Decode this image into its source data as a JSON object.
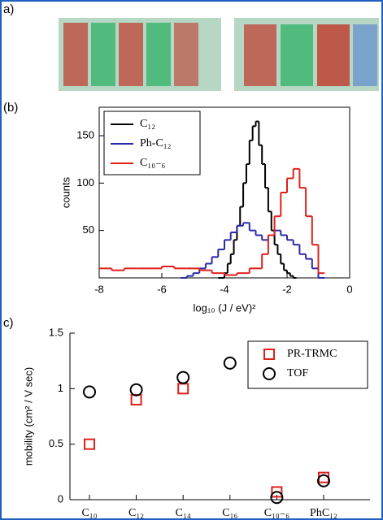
{
  "panels": {
    "a": "a)",
    "b": "(b)",
    "c": "c)"
  },
  "chart_data": [
    {
      "type": "step",
      "xlabel": "log₁₀ (J / eV)²",
      "ylabel": "counts",
      "xlim": [
        -8,
        0
      ],
      "xticks": [
        -8,
        -6,
        -4,
        -2,
        0
      ],
      "ylim": [
        0,
        180
      ],
      "yticks": [
        50,
        100,
        150
      ],
      "legend": "upper left",
      "series": [
        {
          "name": "C₁₂",
          "color": "#000000",
          "x": [
            -4.2,
            -4.0,
            -3.9,
            -3.8,
            -3.7,
            -3.6,
            -3.5,
            -3.4,
            -3.3,
            -3.2,
            -3.1,
            -3.0,
            -2.9,
            -2.8,
            -2.7,
            -2.6,
            -2.5,
            -2.4,
            -2.3,
            -2.2,
            -2.1,
            -2.0,
            -1.9,
            -1.8
          ],
          "values": [
            0,
            5,
            15,
            25,
            40,
            55,
            75,
            100,
            120,
            145,
            160,
            165,
            140,
            120,
            95,
            70,
            50,
            35,
            25,
            15,
            8,
            5,
            2,
            0
          ]
        },
        {
          "name": "Ph-C₁₂",
          "color": "#2a2aa8",
          "x": [
            -5.4,
            -5.2,
            -5.0,
            -4.8,
            -4.6,
            -4.4,
            -4.2,
            -4.0,
            -3.8,
            -3.6,
            -3.4,
            -3.2,
            -3.0,
            -2.8,
            -2.6,
            -2.4,
            -2.2,
            -2.0,
            -1.8,
            -1.6,
            -1.4,
            -1.2,
            -1.0
          ],
          "values": [
            0,
            2,
            5,
            10,
            15,
            22,
            30,
            40,
            48,
            55,
            58,
            50,
            45,
            40,
            45,
            50,
            45,
            40,
            35,
            25,
            20,
            10,
            0
          ]
        },
        {
          "name": "C₁₀₋₆",
          "color": "#e0201b",
          "x": [
            -8.0,
            -7.6,
            -7.2,
            -6.8,
            -6.4,
            -6.0,
            -5.6,
            -5.2,
            -4.8,
            -4.4,
            -4.0,
            -3.6,
            -3.2,
            -2.8,
            -2.6,
            -2.4,
            -2.2,
            -2.0,
            -1.8,
            -1.6,
            -1.4,
            -1.2,
            -1.0
          ],
          "values": [
            10,
            8,
            10,
            10,
            10,
            12,
            10,
            10,
            8,
            5,
            3,
            5,
            10,
            25,
            45,
            65,
            90,
            105,
            115,
            95,
            65,
            35,
            5
          ]
        }
      ]
    },
    {
      "type": "scatter",
      "ylabel": "mobility (cm² / V sec)",
      "ylim": [
        0,
        1.5
      ],
      "yticks": [
        0,
        0.5,
        1,
        1.5
      ],
      "legend": "upper right",
      "categories": [
        "C₁₀",
        "C₁₂",
        "C₁₄",
        "C₁₆",
        "C₁₀₋₆",
        "PhC₁₂"
      ],
      "series": [
        {
          "name": "PR-TRMC",
          "color": "#e0201b",
          "marker": "square",
          "values": [
            0.5,
            0.9,
            1.0,
            null,
            0.07,
            0.2
          ]
        },
        {
          "name": "TOF",
          "color": "#000000",
          "marker": "circle",
          "values": [
            0.97,
            0.99,
            1.1,
            1.23,
            0.02,
            0.17
          ]
        }
      ]
    }
  ]
}
